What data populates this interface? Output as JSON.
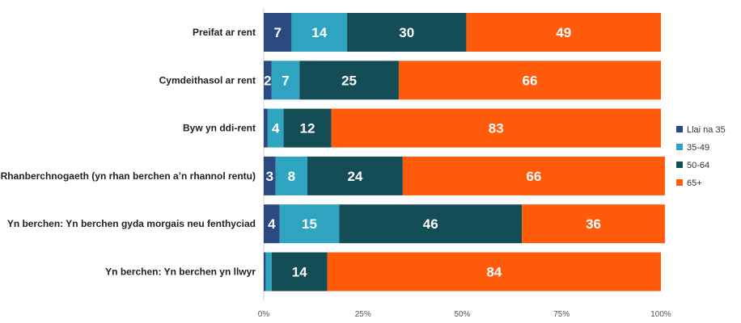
{
  "chart_data": {
    "type": "bar",
    "orientation": "horizontal",
    "stacked": "percent",
    "categories": [
      "Preifat ar rent",
      "Cymdeithasol ar rent",
      "Byw yn ddi-rent",
      "Rhanberchnogaeth (yn rhan berchen a’n rhannol rentu)",
      "Yn berchen: Yn berchen gyda morgais neu fenthyciad",
      "Yn berchen: Yn berchen yn llwyr"
    ],
    "series": [
      {
        "name": "Llai na 35",
        "color": "#2b4b80",
        "values": [
          7,
          2,
          1,
          3,
          4,
          0.5
        ],
        "labels": [
          "7",
          "2",
          "",
          "3",
          "4",
          ""
        ]
      },
      {
        "name": "35-49",
        "color": "#2ea4c0",
        "values": [
          14,
          7,
          4,
          8,
          15,
          1.5
        ],
        "labels": [
          "14",
          "7",
          "4",
          "8",
          "15",
          ""
        ]
      },
      {
        "name": "50-64",
        "color": "#144d56",
        "values": [
          30,
          25,
          12,
          24,
          46,
          14
        ],
        "labels": [
          "30",
          "25",
          "12",
          "24",
          "46",
          "14"
        ]
      },
      {
        "name": "65+",
        "color": "#ff5b0b",
        "values": [
          49,
          66,
          83,
          66,
          36,
          84
        ],
        "labels": [
          "49",
          "66",
          "83",
          "66",
          "36",
          "84"
        ]
      }
    ],
    "xticks": [
      "0%",
      "25%",
      "50%",
      "75%",
      "100%"
    ],
    "xlim": [
      0,
      100
    ],
    "grid": false,
    "legend": "right"
  }
}
